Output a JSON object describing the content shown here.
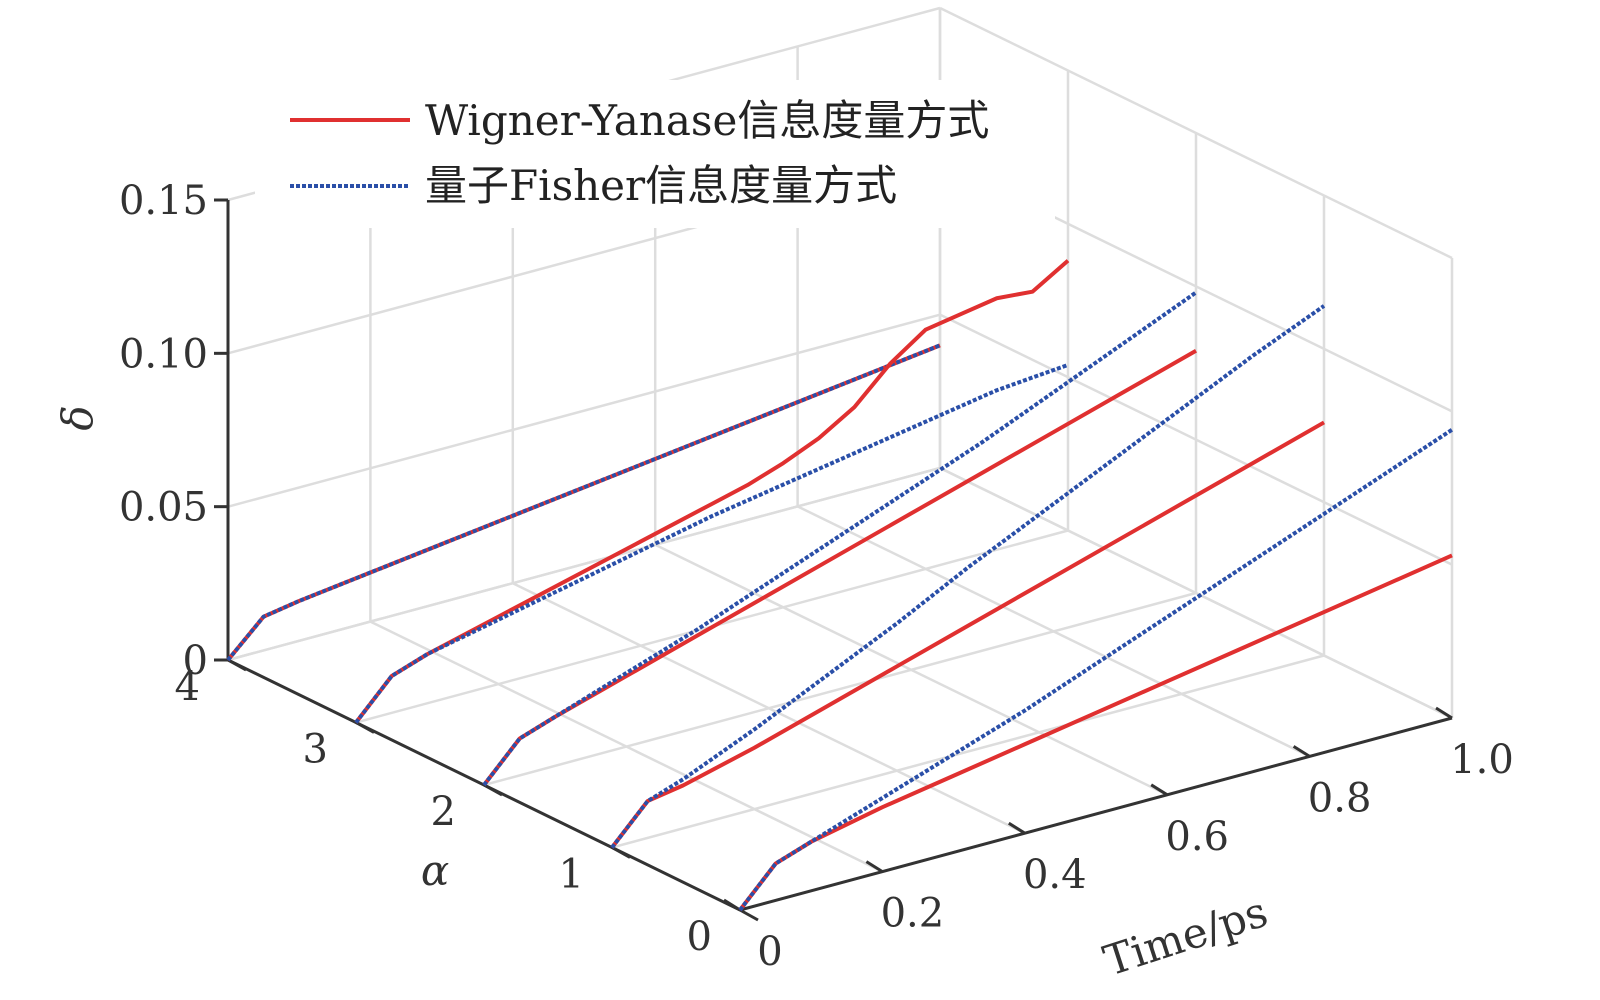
{
  "chart_data": {
    "type": "line",
    "projection": "3d",
    "xlabel": "Time/ps",
    "ylabel": "α",
    "zlabel": "δ",
    "xlim": [
      0,
      1.0
    ],
    "ylim": [
      0,
      4
    ],
    "zlim": [
      0,
      0.15
    ],
    "x_ticks": [
      "0",
      "0.2",
      "0.4",
      "0.6",
      "0.8",
      "1.0"
    ],
    "y_ticks": [
      "0",
      "1",
      "2",
      "3",
      "4"
    ],
    "z_ticks": [
      "0",
      "0.05",
      "0.10",
      "0.15"
    ],
    "grid": true,
    "legend_position": "top-left",
    "legend": [
      {
        "label": "Wigner-Yanase信息度量方式",
        "color": "#e03030",
        "style": "solid"
      },
      {
        "label": "量子Fisher信息度量方式",
        "color": "#2a4fa8",
        "style": "dotted"
      }
    ],
    "series": [
      {
        "name": "Wigner-Yanase信息度量方式",
        "alpha": 4,
        "x": [
          0,
          0.05,
          0.1,
          0.2,
          0.3,
          0.4,
          0.5,
          0.6,
          0.7,
          0.8,
          0.9,
          1.0
        ],
        "z": [
          0,
          0.011,
          0.013,
          0.016,
          0.019,
          0.022,
          0.025,
          0.028,
          0.031,
          0.034,
          0.037,
          0.04
        ]
      },
      {
        "name": "量子Fisher信息度量方式",
        "alpha": 4,
        "x": [
          0,
          0.05,
          0.1,
          0.2,
          0.3,
          0.4,
          0.5,
          0.6,
          0.7,
          0.8,
          0.9,
          1.0
        ],
        "z": [
          0,
          0.011,
          0.013,
          0.016,
          0.019,
          0.022,
          0.025,
          0.028,
          0.031,
          0.034,
          0.037,
          0.04
        ]
      },
      {
        "name": "Wigner-Yanase信息度量方式",
        "alpha": 3,
        "x": [
          0,
          0.05,
          0.1,
          0.2,
          0.3,
          0.4,
          0.5,
          0.55,
          0.6,
          0.65,
          0.7,
          0.75,
          0.8,
          0.85,
          0.9,
          0.95,
          1.0
        ],
        "z": [
          0,
          0.012,
          0.016,
          0.022,
          0.028,
          0.034,
          0.04,
          0.043,
          0.047,
          0.052,
          0.059,
          0.07,
          0.078,
          0.08,
          0.082,
          0.081,
          0.088
        ]
      },
      {
        "name": "量子Fisher信息度量方式",
        "alpha": 3,
        "x": [
          0,
          0.05,
          0.1,
          0.2,
          0.3,
          0.4,
          0.5,
          0.6,
          0.7,
          0.8,
          0.9,
          1.0
        ],
        "z": [
          0,
          0.012,
          0.016,
          0.021,
          0.026,
          0.031,
          0.036,
          0.04,
          0.044,
          0.048,
          0.052,
          0.054
        ]
      },
      {
        "name": "Wigner-Yanase信息度量方式",
        "alpha": 2,
        "x": [
          0,
          0.05,
          0.1,
          0.2,
          0.3,
          0.4,
          0.5,
          0.6,
          0.7,
          0.8,
          0.9,
          1.0
        ],
        "z": [
          0,
          0.012,
          0.016,
          0.023,
          0.03,
          0.037,
          0.044,
          0.051,
          0.058,
          0.065,
          0.072,
          0.079
        ]
      },
      {
        "name": "量子Fisher信息度量方式",
        "alpha": 2,
        "x": [
          0,
          0.05,
          0.1,
          0.2,
          0.3,
          0.4,
          0.5,
          0.6,
          0.7,
          0.8,
          0.9,
          1.0
        ],
        "z": [
          0,
          0.012,
          0.016,
          0.024,
          0.032,
          0.041,
          0.05,
          0.059,
          0.068,
          0.078,
          0.088,
          0.098
        ]
      },
      {
        "name": "Wigner-Yanase信息度量方式",
        "alpha": 1,
        "x": [
          0,
          0.05,
          0.1,
          0.2,
          0.3,
          0.4,
          0.5,
          0.6,
          0.7,
          0.8,
          0.9,
          1.0
        ],
        "z": [
          0,
          0.012,
          0.014,
          0.02,
          0.027,
          0.034,
          0.041,
          0.048,
          0.055,
          0.062,
          0.069,
          0.076
        ]
      },
      {
        "name": "量子Fisher信息度量方式",
        "alpha": 1,
        "x": [
          0,
          0.05,
          0.1,
          0.2,
          0.3,
          0.4,
          0.5,
          0.6,
          0.7,
          0.8,
          0.9,
          1.0
        ],
        "z": [
          0,
          0.012,
          0.016,
          0.026,
          0.037,
          0.048,
          0.06,
          0.071,
          0.082,
          0.093,
          0.104,
          0.114
        ]
      },
      {
        "name": "Wigner-Yanase信息度量方式",
        "alpha": 0,
        "x": [
          0,
          0.05,
          0.1,
          0.2,
          0.3,
          0.4,
          0.5,
          0.6,
          0.7,
          0.8,
          0.9,
          1.0
        ],
        "z": [
          0,
          0.012,
          0.016,
          0.021,
          0.025,
          0.029,
          0.033,
          0.037,
          0.041,
          0.045,
          0.049,
          0.053
        ]
      },
      {
        "name": "量子Fisher信息度量方式",
        "alpha": 0,
        "x": [
          0,
          0.05,
          0.1,
          0.2,
          0.3,
          0.4,
          0.5,
          0.6,
          0.7,
          0.8,
          0.9,
          1.0
        ],
        "z": [
          0,
          0.012,
          0.016,
          0.024,
          0.032,
          0.04,
          0.049,
          0.058,
          0.067,
          0.076,
          0.085,
          0.094
        ]
      }
    ]
  }
}
